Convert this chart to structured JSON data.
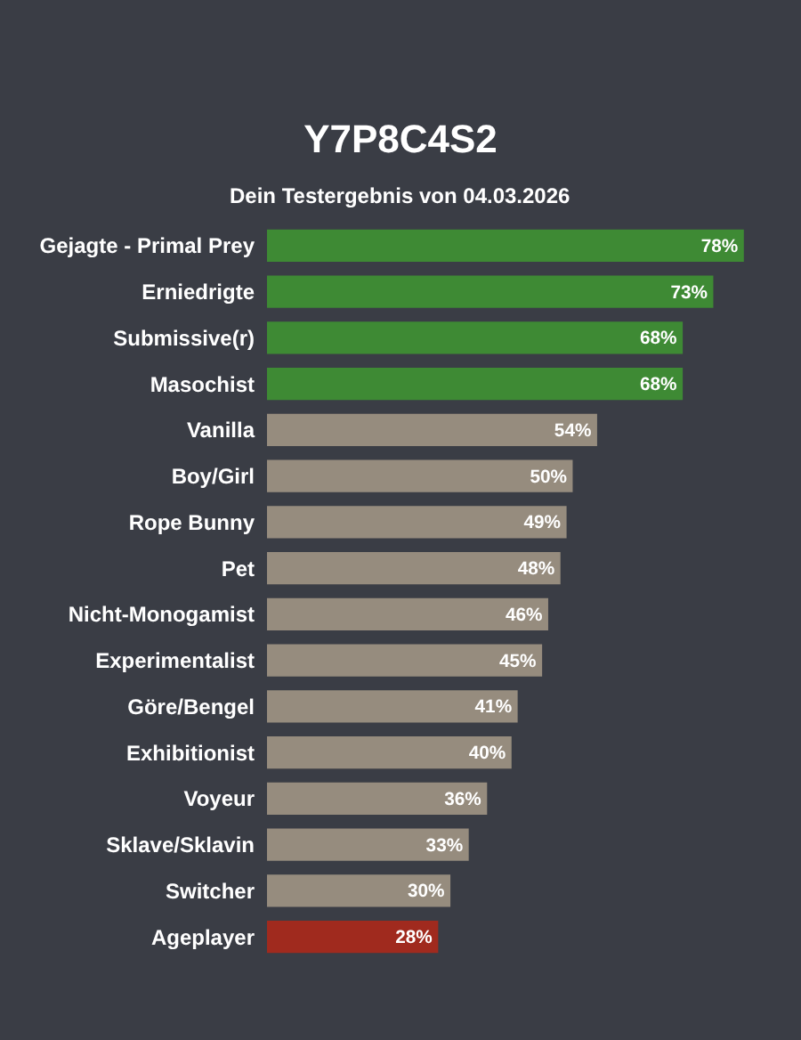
{
  "chart_data": {
    "type": "bar",
    "orientation": "horizontal",
    "title": "Y7P8C4S2",
    "subtitle": "Dein Testergebnis von 04.03.2026",
    "categories": [
      "Gejagte - Primal Prey",
      "Erniedrigte",
      "Submissive(r)",
      "Masochist",
      "Vanilla",
      "Boy/Girl",
      "Rope Bunny",
      "Pet",
      "Nicht-Monogamist",
      "Experimentalist",
      "Göre/Bengel",
      "Exhibitionist",
      "Voyeur",
      "Sklave/Sklavin",
      "Switcher",
      "Ageplayer"
    ],
    "values": [
      78,
      73,
      68,
      68,
      54,
      50,
      49,
      48,
      46,
      45,
      41,
      40,
      36,
      33,
      30,
      28
    ],
    "value_labels": [
      "78%",
      "73%",
      "68%",
      "68%",
      "54%",
      "50%",
      "49%",
      "48%",
      "46%",
      "45%",
      "41%",
      "40%",
      "36%",
      "33%",
      "30%",
      "28%"
    ],
    "colors": [
      "#3e8a34",
      "#3e8a34",
      "#3e8a34",
      "#3e8a34",
      "#968c7e",
      "#968c7e",
      "#968c7e",
      "#968c7e",
      "#968c7e",
      "#968c7e",
      "#968c7e",
      "#968c7e",
      "#968c7e",
      "#968c7e",
      "#968c7e",
      "#a02a1e"
    ],
    "tick_labels": "y",
    "grid": false
  }
}
